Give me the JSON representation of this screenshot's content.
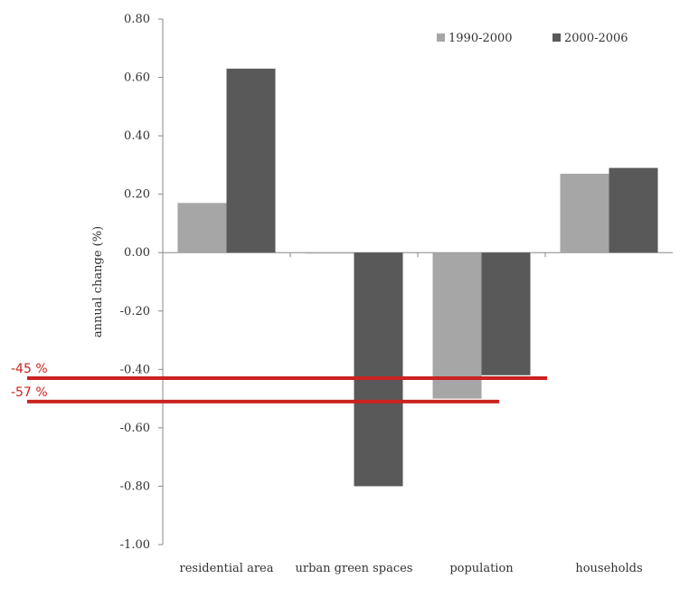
{
  "chart_data": {
    "type": "bar",
    "ylabel": "annual change (%)",
    "ylim": [
      -1.0,
      0.8
    ],
    "yticks": [
      "0.80",
      "0.60",
      "0.40",
      "0.20",
      "0.00",
      "-0.20",
      "-0.40",
      "-0.60",
      "-0.80",
      "-1.00"
    ],
    "categories": [
      "residential area",
      "urban green spaces",
      "population",
      "households"
    ],
    "series": [
      {
        "name": "1990-2000",
        "color": "#a6a6a6",
        "values": [
          0.17,
          0.0,
          -0.5,
          0.27
        ]
      },
      {
        "name": "2000-2006",
        "color": "#595959",
        "values": [
          0.63,
          -0.8,
          -0.42,
          0.29
        ]
      }
    ],
    "legend_position": "top-right",
    "grid": false,
    "annotations": [
      {
        "label": "-45 %",
        "value": -0.43,
        "color": "#cc2222"
      },
      {
        "label": "-57 %",
        "value": -0.51,
        "color": "#cc2222"
      }
    ]
  }
}
